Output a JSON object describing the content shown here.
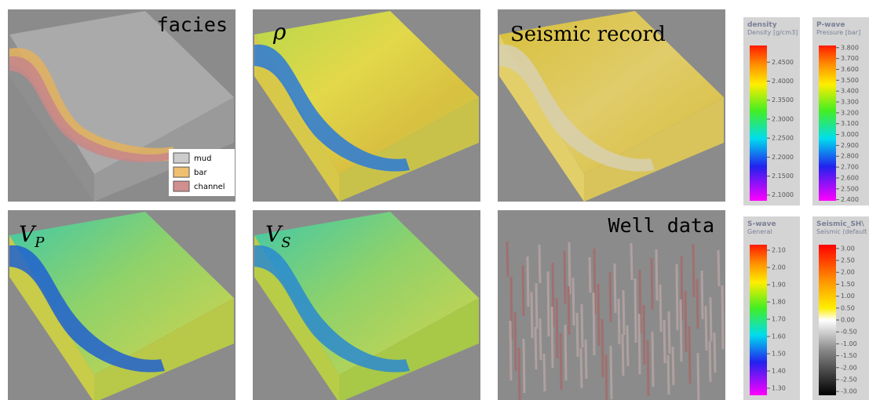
{
  "panels": [
    {
      "label": "facies"
    },
    {
      "label": "ρ"
    },
    {
      "label": "Seismic record"
    },
    {
      "label": "V",
      "subscript": "P"
    },
    {
      "label": "V",
      "subscript": "S"
    },
    {
      "label": "Well data"
    }
  ],
  "facies_legend": [
    "mud",
    "bar",
    "channel"
  ],
  "colorbars": [
    {
      "title": "density",
      "subtitle": "Density [g/cm3]",
      "range": [
        2.085,
        2.494
      ],
      "ticks": [
        {
          "value": 2.45,
          "label": "2.4500"
        },
        {
          "value": 2.4,
          "label": "2.4000"
        },
        {
          "value": 2.35,
          "label": "2.3500"
        },
        {
          "value": 2.3,
          "label": "2.3000"
        },
        {
          "value": 2.25,
          "label": "2.2500"
        },
        {
          "value": 2.2,
          "label": "2.2000"
        },
        {
          "value": 2.15,
          "label": "2.1500"
        },
        {
          "value": 2.1,
          "label": "2.1000"
        }
      ]
    },
    {
      "title": "P-wave",
      "subtitle": "Pressure [bar]",
      "range": [
        2.39,
        3.82
      ],
      "ticks": [
        {
          "value": 3.8,
          "label": "3.800"
        },
        {
          "value": 3.7,
          "label": "3.700"
        },
        {
          "value": 3.6,
          "label": "3.600"
        },
        {
          "value": 3.5,
          "label": "3.500"
        },
        {
          "value": 3.4,
          "label": "3.400"
        },
        {
          "value": 3.3,
          "label": "3.300"
        },
        {
          "value": 3.2,
          "label": "3.200"
        },
        {
          "value": 3.1,
          "label": "3.100"
        },
        {
          "value": 3,
          "label": "3.000"
        },
        {
          "value": 2.9,
          "label": "2.900"
        },
        {
          "value": 2.8,
          "label": "2.800"
        },
        {
          "value": 2.7,
          "label": "2.700"
        },
        {
          "value": 2.6,
          "label": "2.600"
        },
        {
          "value": 2.5,
          "label": "2.500"
        },
        {
          "value": 2.4,
          "label": "2.400"
        }
      ]
    },
    {
      "title": "S-wave",
      "subtitle": "General",
      "range": [
        1.259,
        2.132
      ],
      "ticks": [
        {
          "value": 2.1,
          "label": "2.10"
        },
        {
          "value": 2,
          "label": "2.00"
        },
        {
          "value": 1.9,
          "label": "1.90"
        },
        {
          "value": 1.8,
          "label": "1.80"
        },
        {
          "value": 1.7,
          "label": "1.70"
        },
        {
          "value": 1.6,
          "label": "1.60"
        },
        {
          "value": 1.5,
          "label": "1.50"
        },
        {
          "value": 1.4,
          "label": "1.40"
        },
        {
          "value": 1.3,
          "label": "1.30"
        }
      ]
    },
    {
      "title": "Seismic_SH\\",
      "subtitle": "Seismic (default",
      "range": [
        -3.16,
        3.16
      ],
      "ticks": [
        {
          "value": 3,
          "label": "3.00"
        },
        {
          "value": 2.5,
          "label": "2.50"
        },
        {
          "value": 2,
          "label": "2.00"
        },
        {
          "value": 1.5,
          "label": "1.50"
        },
        {
          "value": 1,
          "label": "1.00"
        },
        {
          "value": 0.5,
          "label": "0.50"
        },
        {
          "value": 0,
          "label": "0.00"
        },
        {
          "value": -0.5,
          "label": "-0.50"
        },
        {
          "value": -1,
          "label": "-1.00"
        },
        {
          "value": -1.5,
          "label": "-1.50"
        },
        {
          "value": -2,
          "label": "-2.00"
        },
        {
          "value": -2.5,
          "label": "-2.50"
        },
        {
          "value": -3,
          "label": "-3.00"
        }
      ]
    }
  ]
}
